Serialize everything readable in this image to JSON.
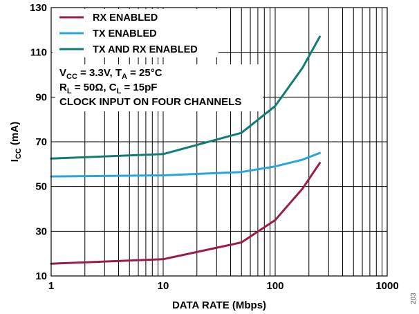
{
  "chart_data": {
    "type": "line",
    "xlabel": "DATA RATE (Mbps)",
    "ylabel": "I",
    "ylabel_sub": "CC",
    "ylabel_unit": " (mA)",
    "xscale": "log",
    "xlim": [
      1,
      1000
    ],
    "ylim": [
      10,
      130
    ],
    "xticks": [
      1,
      10,
      100,
      1000
    ],
    "xtick_labels": [
      "1",
      "10",
      "100",
      "1000"
    ],
    "yticks": [
      10,
      30,
      50,
      70,
      90,
      110,
      130
    ],
    "ytick_labels": [
      "10",
      "30",
      "50",
      "70",
      "90",
      "110",
      "130"
    ],
    "grid": true,
    "legend_position": "top-left",
    "series": [
      {
        "name": "RX ENABLED",
        "color": "#9b1b4f",
        "x": [
          1,
          10,
          50,
          100,
          175,
          250
        ],
        "y": [
          15.5,
          17.5,
          25,
          35,
          49,
          60.5
        ]
      },
      {
        "name": "TX ENABLED",
        "color": "#27a5dc",
        "x": [
          1,
          10,
          50,
          100,
          175,
          250
        ],
        "y": [
          54.5,
          55,
          56.5,
          59,
          62,
          65
        ]
      },
      {
        "name": "TX AND RX ENABLED",
        "color": "#107c74",
        "x": [
          1,
          10,
          50,
          100,
          175,
          250
        ],
        "y": [
          62.5,
          64.5,
          74,
          86,
          103,
          117
        ]
      }
    ],
    "conditions": {
      "line1": {
        "v": "V",
        "v_sub": "CC",
        "v_rest": " = 3.3V, T",
        "t_sub": "A",
        "t_rest": " = 25°C"
      },
      "line2": {
        "r": "R",
        "r_sub": "L",
        "r_rest": " = 50Ω, C",
        "c_sub": "L",
        "c_rest": " = 15pF"
      },
      "line3": "CLOCK INPUT ON FOUR CHANNELS"
    },
    "figure_code": "203"
  }
}
